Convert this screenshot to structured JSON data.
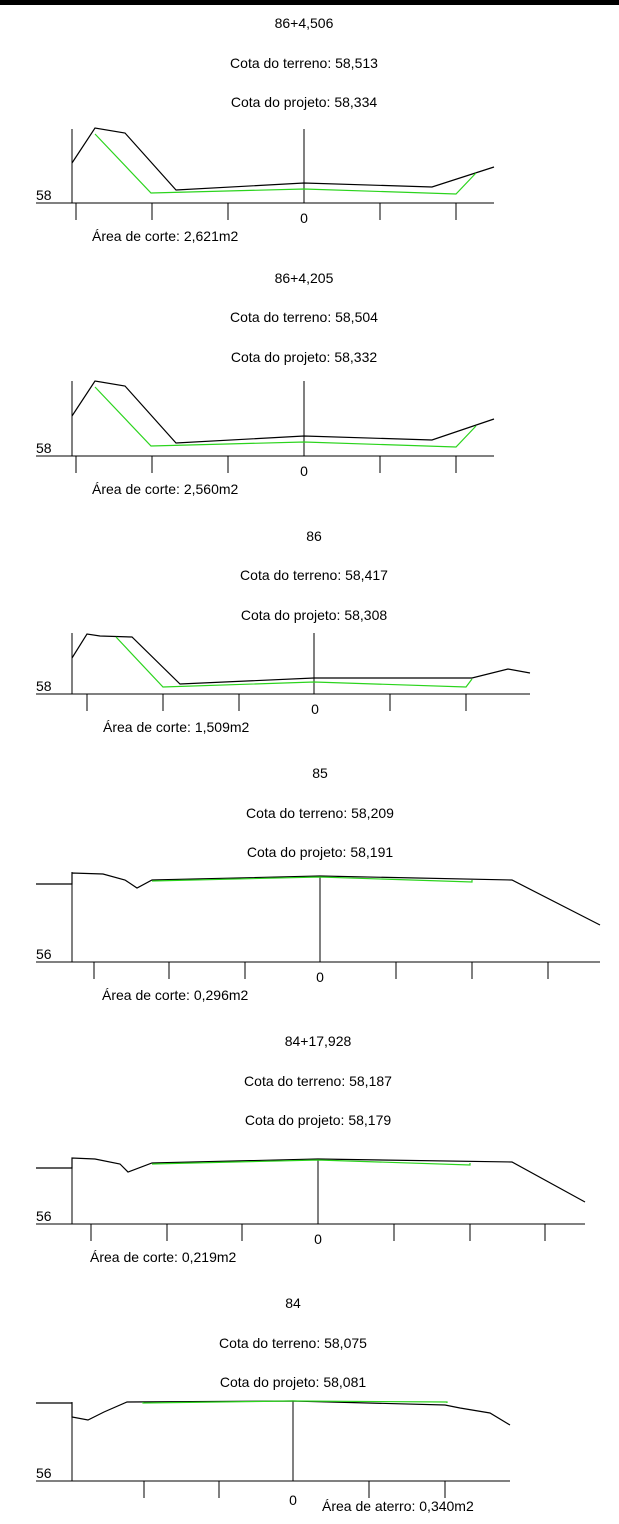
{
  "colors": {
    "terrain": "#000000",
    "project": "#2bd41d",
    "ink": "#000000"
  },
  "sections": [
    {
      "station": "86+4,506",
      "terrain_label": "Cota do terreno: 58,513",
      "project_label": "Cota do projeto: 58,334",
      "elev_label": "58",
      "zero_label": "0",
      "area_label": "Área de corte: 2,621m2"
    },
    {
      "station": "86+4,205",
      "terrain_label": "Cota do terreno: 58,504",
      "project_label": "Cota do projeto: 58,332",
      "elev_label": "58",
      "zero_label": "0",
      "area_label": "Área de corte: 2,560m2"
    },
    {
      "station": "86",
      "terrain_label": "Cota do terreno: 58,417",
      "project_label": "Cota do projeto: 58,308",
      "elev_label": "58",
      "zero_label": "0",
      "area_label": "Área de corte: 1,509m2"
    },
    {
      "station": "85",
      "terrain_label": "Cota do terreno: 58,209",
      "project_label": "Cota do projeto: 58,191",
      "elev_label": "56",
      "zero_label": "0",
      "area_label": "Área de corte: 0,296m2"
    },
    {
      "station": "84+17,928",
      "terrain_label": "Cota do terreno: 58,187",
      "project_label": "Cota do projeto: 58,179",
      "elev_label": "56",
      "zero_label": "0",
      "area_label": "Área de corte: 0,219m2"
    },
    {
      "station": "84",
      "terrain_label": "Cota do terreno: 58,075",
      "project_label": "Cota do projeto: 58,081",
      "elev_label": "56",
      "zero_label": "0",
      "area_label": "Área de aterro: 0,340m2"
    }
  ]
}
